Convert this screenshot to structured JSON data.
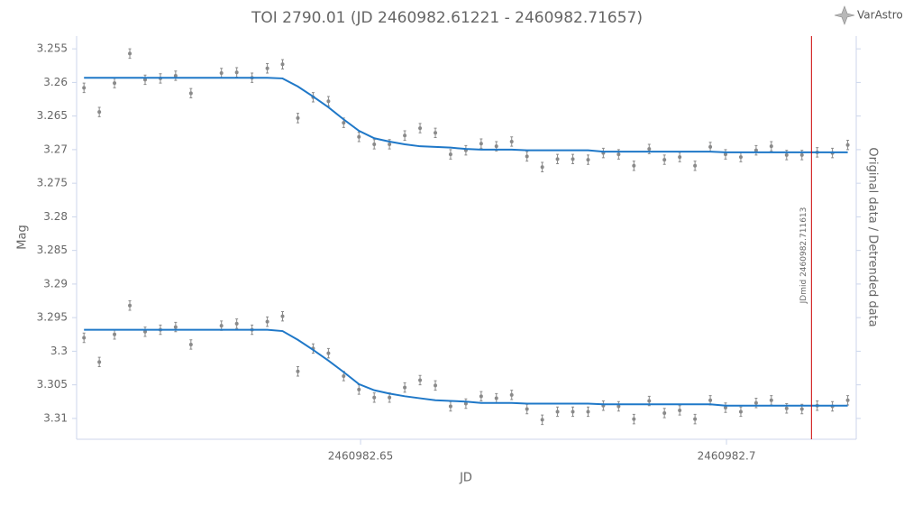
{
  "chart_data": {
    "type": "scatter",
    "title": "TOI 2790.01 (JD 2460982.61221 - 2460982.71657)",
    "brand": "VarAstro",
    "x_label": "JD",
    "y_label": "Mag",
    "y2_label": "Original data / Detrended data",
    "x": [
      2460982.61221,
      2460982.6143,
      2460982.61638,
      2460982.61847,
      2460982.62056,
      2460982.62265,
      2460982.62473,
      2460982.62682,
      2460982.63099,
      2460982.63308,
      2460982.63517,
      2460982.63726,
      2460982.63934,
      2460982.64143,
      2460982.64352,
      2460982.64561,
      2460982.64769,
      2460982.64978,
      2460982.65187,
      2460982.65395,
      2460982.65604,
      2460982.65813,
      2460982.66022,
      2460982.6623,
      2460982.66439,
      2460982.66648,
      2460982.66856,
      2460982.67065,
      2460982.67274,
      2460982.67483,
      2460982.67691,
      2460982.679,
      2460982.68109,
      2460982.68317,
      2460982.68526,
      2460982.68735,
      2460982.68944,
      2460982.69152,
      2460982.69361,
      2460982.6957,
      2460982.69779,
      2460982.69987,
      2460982.70196,
      2460982.70405,
      2460982.70613,
      2460982.70822,
      2460982.71031,
      2460982.7124,
      2460982.71448,
      2460982.71657
    ],
    "series": [
      {
        "kind": "points",
        "color": "#8a8a8a",
        "error": 0.0007,
        "values": [
          3.2608,
          3.2644,
          3.2601,
          3.2557,
          3.2596,
          3.2594,
          3.259,
          3.2616,
          3.2586,
          3.2585,
          3.2593,
          3.2579,
          3.2573,
          3.2653,
          3.2622,
          3.2628,
          3.266,
          3.2681,
          3.2692,
          3.2692,
          3.2679,
          3.2668,
          3.2675,
          3.2707,
          3.2701,
          3.2691,
          3.2695,
          3.2688,
          3.271,
          3.2726,
          3.2714,
          3.2714,
          3.2715,
          3.2705,
          3.2707,
          3.2724,
          3.2699,
          3.2715,
          3.2711,
          3.2724,
          3.2696,
          3.2707,
          3.2711,
          3.2701,
          3.2695,
          3.2708,
          3.2708,
          3.2704,
          3.2705,
          3.2693
        ]
      },
      {
        "kind": "points",
        "color": "#8a8a8a",
        "error": 0.0007,
        "values": [
          3.298,
          3.3016,
          3.2975,
          3.2932,
          3.2971,
          3.2968,
          3.2964,
          3.299,
          3.2962,
          3.2959,
          3.2968,
          3.2956,
          3.2948,
          3.303,
          3.2996,
          3.3003,
          3.3037,
          3.3057,
          3.3069,
          3.3069,
          3.3054,
          3.3043,
          3.3051,
          3.3082,
          3.3078,
          3.3067,
          3.307,
          3.3065,
          3.3086,
          3.3102,
          3.309,
          3.309,
          3.309,
          3.3081,
          3.3082,
          3.3101,
          3.3074,
          3.3092,
          3.3088,
          3.3101,
          3.3073,
          3.3084,
          3.309,
          3.3077,
          3.3073,
          3.3085,
          3.3086,
          3.3081,
          3.3082,
          3.3073
        ]
      },
      {
        "kind": "line",
        "color": "#1f78c8",
        "values": [
          3.2593,
          3.2593,
          3.2593,
          3.2593,
          3.2593,
          3.2593,
          3.2593,
          3.2593,
          3.2593,
          3.2593,
          3.2593,
          3.2593,
          3.2594,
          3.2606,
          3.2621,
          3.2637,
          3.2655,
          3.2672,
          3.2683,
          3.2688,
          3.2692,
          3.2695,
          3.2696,
          3.2697,
          3.2699,
          3.27,
          3.27,
          3.27,
          3.2701,
          3.2701,
          3.2701,
          3.2701,
          3.2701,
          3.2703,
          3.2703,
          3.2703,
          3.2703,
          3.2703,
          3.2703,
          3.2703,
          3.2703,
          3.2704,
          3.2704,
          3.2704,
          3.2704,
          3.2704,
          3.2704,
          3.2704,
          3.2704,
          3.2704
        ]
      },
      {
        "kind": "line",
        "color": "#1f78c8",
        "values": [
          3.2968,
          3.2968,
          3.2968,
          3.2968,
          3.2968,
          3.2968,
          3.2968,
          3.2968,
          3.2968,
          3.2968,
          3.2968,
          3.2968,
          3.297,
          3.2983,
          3.2998,
          3.3014,
          3.3031,
          3.3049,
          3.3058,
          3.3063,
          3.3067,
          3.307,
          3.3073,
          3.3074,
          3.3075,
          3.3077,
          3.3077,
          3.3077,
          3.3078,
          3.3078,
          3.3078,
          3.3078,
          3.3078,
          3.3079,
          3.3079,
          3.3079,
          3.3079,
          3.3079,
          3.3079,
          3.3079,
          3.3079,
          3.3081,
          3.3081,
          3.3081,
          3.3081,
          3.3081,
          3.3081,
          3.3081,
          3.3081,
          3.3081
        ]
      }
    ],
    "marker": {
      "x": 2460982.711613,
      "label": "JDmid 2460982.711613",
      "color": "#cc0000"
    },
    "xlim": [
      2460982.6112,
      2460982.71773
    ],
    "xticks": [
      2460982.65,
      2460982.7
    ],
    "ylim": [
      3.2531,
      3.3131
    ],
    "yticks": [
      3.255,
      3.26,
      3.265,
      3.27,
      3.275,
      3.28,
      3.285,
      3.29,
      3.295,
      3.3,
      3.305,
      3.31
    ],
    "y_reversed": true,
    "grid": false
  }
}
